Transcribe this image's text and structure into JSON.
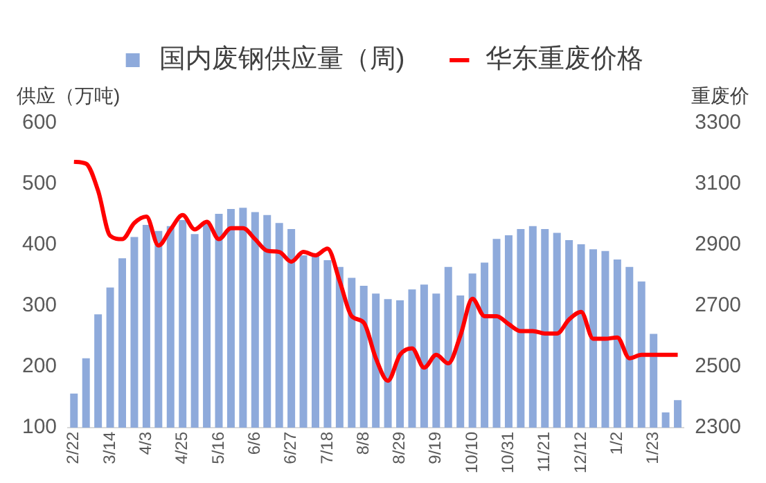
{
  "chart_data": {
    "type": "bar",
    "categories": [
      "2/22",
      null,
      null,
      "3/14",
      null,
      null,
      "4/3",
      null,
      null,
      "4/25",
      null,
      null,
      "5/16",
      null,
      null,
      "6/6",
      null,
      null,
      "6/27",
      null,
      null,
      "7/18",
      null,
      null,
      "8/8",
      null,
      null,
      "8/29",
      null,
      null,
      "9/19",
      null,
      null,
      "10/10",
      null,
      null,
      "10/31",
      null,
      null,
      "11/21",
      null,
      null,
      "12/12",
      null,
      null,
      "1/2",
      null,
      null,
      "1/23",
      null,
      null
    ],
    "series": [
      {
        "name": "国内废钢供应量（周)",
        "color": "#8eaadb",
        "values": [
          156,
          214,
          286,
          330,
          378,
          413,
          433,
          423,
          431,
          441,
          418,
          439,
          451,
          459,
          461,
          454,
          449,
          436,
          426,
          383,
          383,
          375,
          364,
          346,
          333,
          320,
          311,
          309,
          327,
          335,
          320,
          364,
          317,
          353,
          371,
          410,
          416,
          426,
          431,
          426,
          420,
          408,
          401,
          393,
          390,
          376,
          364,
          340,
          254,
          125,
          145
        ]
      },
      {
        "name": "华东重废价格",
        "type": "line",
        "axis": "y2",
        "color": "#ff0000",
        "values": [
          3173,
          3167,
          3078,
          2930,
          2919,
          2972,
          2993,
          2898,
          2951,
          2998,
          2951,
          2976,
          2919,
          2955,
          2955,
          2919,
          2881,
          2877,
          2845,
          2877,
          2866,
          2888,
          2782,
          2666,
          2645,
          2528,
          2454,
          2539,
          2560,
          2497,
          2539,
          2511,
          2602,
          2723,
          2666,
          2666,
          2640,
          2617,
          2617,
          2609,
          2609,
          2655,
          2680,
          2592,
          2592,
          2596,
          2528,
          2539,
          2539,
          2539,
          2539
        ]
      }
    ],
    "ylabel": "供应（万吨)",
    "y2label": "重废价",
    "ylim": [
      100,
      600
    ],
    "yticks": [
      100,
      200,
      300,
      400,
      500,
      600
    ],
    "y2lim": [
      2300,
      3300
    ],
    "y2ticks": [
      2300,
      2500,
      2700,
      2900,
      3100,
      3300
    ],
    "legend": "top",
    "marker": "none",
    "line_style": "solid",
    "grid": false
  }
}
